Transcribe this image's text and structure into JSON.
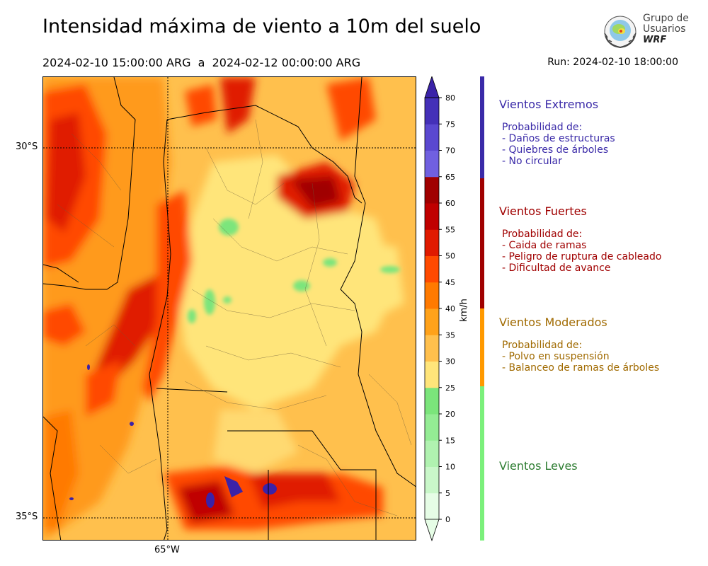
{
  "title": "Intensidad máxima de viento a 10m del suelo",
  "period": "2024-02-10 15:00:00 ARG  a  2024-02-12 00:00:00 ARG",
  "run": "Run: 2024-02-10 18:00:00",
  "logo": {
    "line1": "Grupo de",
    "line2": "Usuarios",
    "line3": "WRF"
  },
  "map": {
    "lat_labels": [
      "30°S",
      "35°S"
    ],
    "lon_labels": [
      "65°W"
    ]
  },
  "colorbar": {
    "unit": "km/h",
    "ticks": [
      "0",
      "5",
      "10",
      "15",
      "20",
      "25",
      "30",
      "35",
      "40",
      "45",
      "50",
      "55",
      "60",
      "65",
      "70",
      "75",
      "80"
    ],
    "colors": [
      "#e6fde6",
      "#c9f7c9",
      "#b0f2b0",
      "#94ec94",
      "#7be57b",
      "#ffe57a",
      "#ffc04d",
      "#ffa21a",
      "#ff7a00",
      "#ff4a00",
      "#e01a00",
      "#c00000",
      "#a00000",
      "#7060e0",
      "#5a48d0",
      "#4430b8",
      "#3a22a8"
    ]
  },
  "categories": [
    {
      "title": "Vientos Extremos",
      "color": "#3a2aa8",
      "items": [
        "Probabilidad de:",
        "- Daños de estructuras",
        "- Quiebres de árboles",
        "- No circular"
      ]
    },
    {
      "title": "Vientos Fuertes",
      "color": "#a00000",
      "items": [
        "Probabilidad de:",
        "- Caida de ramas",
        "- Peligro de ruptura de cableado",
        "- Dificultad de avance"
      ]
    },
    {
      "title": "Vientos Moderados",
      "color": "#a06a00",
      "items": [
        "Probabilidad de:",
        "- Polvo en suspensión",
        "- Balanceo de ramas de árboles"
      ]
    },
    {
      "title": "Vientos Leves",
      "color": "#2e7d32",
      "items": []
    }
  ],
  "legend_colors": {
    "extremos": "#3a2aa8",
    "fuertes": "#a00000",
    "moderados": "#ff9900",
    "leves": "#7bf07b"
  }
}
